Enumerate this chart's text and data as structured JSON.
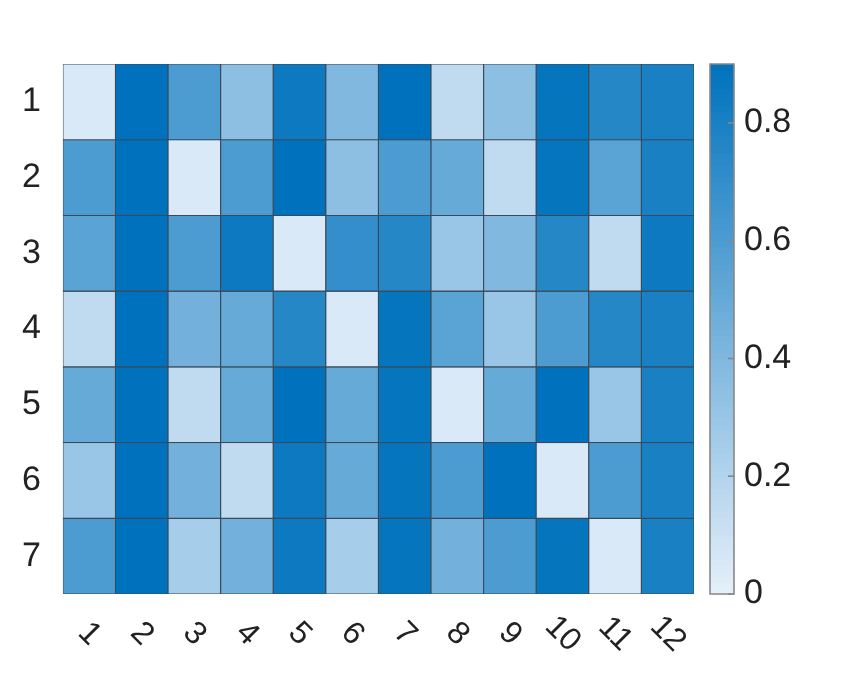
{
  "chart_data": {
    "type": "heatmap",
    "categories": [
      "1",
      "2",
      "3",
      "4",
      "5",
      "6",
      "7",
      "8",
      "9",
      "10",
      "11",
      "12"
    ],
    "y_categories": [
      "1",
      "2",
      "3",
      "4",
      "5",
      "6",
      "7"
    ],
    "cells": [
      [
        0.05,
        0.9,
        0.6,
        0.35,
        0.85,
        0.4,
        0.9,
        0.15,
        0.35,
        0.88,
        0.75,
        0.8
      ],
      [
        0.6,
        0.9,
        0.05,
        0.6,
        0.9,
        0.35,
        0.6,
        0.5,
        0.15,
        0.88,
        0.55,
        0.8
      ],
      [
        0.55,
        0.9,
        0.6,
        0.85,
        0.05,
        0.7,
        0.75,
        0.3,
        0.4,
        0.75,
        0.15,
        0.85
      ],
      [
        0.15,
        0.9,
        0.45,
        0.5,
        0.75,
        0.05,
        0.88,
        0.55,
        0.3,
        0.6,
        0.75,
        0.8
      ],
      [
        0.5,
        0.9,
        0.15,
        0.5,
        0.9,
        0.5,
        0.88,
        0.05,
        0.5,
        0.9,
        0.3,
        0.8
      ],
      [
        0.3,
        0.9,
        0.45,
        0.15,
        0.85,
        0.5,
        0.88,
        0.6,
        0.9,
        0.05,
        0.6,
        0.8
      ],
      [
        0.6,
        0.9,
        0.25,
        0.45,
        0.85,
        0.25,
        0.88,
        0.45,
        0.6,
        0.88,
        0.05,
        0.8
      ]
    ],
    "clim": [
      0,
      0.9
    ],
    "cticks": [
      0,
      0.2,
      0.4,
      0.6,
      0.8
    ]
  }
}
